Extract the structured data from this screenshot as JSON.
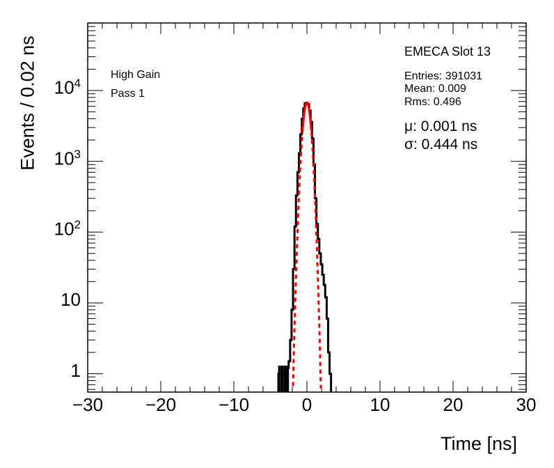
{
  "chart_data": {
    "type": "line",
    "xlabel": "Time [ns]",
    "ylabel": "Events / 0.02 ns",
    "xlim": [
      -30,
      30
    ],
    "ylim": [
      0.55,
      90000
    ],
    "yscale": "log",
    "grid": false,
    "x_ticks": [
      "−30",
      "−20",
      "−10",
      "0",
      "10",
      "20",
      "30"
    ],
    "y_ticks": [
      {
        "value": 1,
        "base": "1",
        "exp": ""
      },
      {
        "value": 10,
        "base": "10",
        "exp": ""
      },
      {
        "value": 100,
        "base": "10",
        "exp": "2"
      },
      {
        "value": 1000,
        "base": "10",
        "exp": "3"
      },
      {
        "value": 10000,
        "base": "10",
        "exp": "4"
      }
    ],
    "series": [
      {
        "kind": "histogram",
        "color": "#000000",
        "x": [
          -3.8,
          -3.5,
          -3.3,
          -3.0,
          -2.8,
          -2.6,
          -2.4,
          -2.2,
          -2.0,
          -1.8,
          -1.6,
          -1.4,
          -1.2,
          -1.0,
          -0.8,
          -0.6,
          -0.4,
          -0.2,
          0.0,
          0.2,
          0.4,
          0.6,
          0.8,
          1.0,
          1.2,
          1.4,
          1.6,
          1.8,
          2.0,
          2.2,
          2.4,
          2.6,
          2.8,
          3.0,
          3.2
        ],
        "y": [
          1,
          1,
          1,
          1,
          1,
          1.2,
          1.5,
          3,
          8,
          30,
          120,
          330,
          700,
          1300,
          2400,
          4000,
          5600,
          6600,
          6700,
          6400,
          5200,
          3600,
          2100,
          900,
          300,
          130,
          80,
          50,
          35,
          25,
          18,
          12,
          6,
          2,
          1
        ]
      },
      {
        "kind": "gaussian_fit",
        "color": "#ff0000",
        "amplitude": 6700,
        "mu": 0.001,
        "sigma": 0.444,
        "fit_range": [
          -0.6,
          0.6
        ],
        "extrapolated": true
      }
    ]
  },
  "labels": {
    "gain": "High Gain",
    "pass": "Pass 1",
    "slot": "EMECA Slot 13",
    "entries": "Entries: 391031",
    "mean": "Mean: 0.009",
    "rms": "Rms: 0.496",
    "mu": "μ: 0.001 ns",
    "sigma": "σ: 0.444 ns"
  },
  "colors": {
    "histogram": "#000000",
    "fit": "#ff0000",
    "frame": "#000000",
    "background": "#ffffff"
  }
}
